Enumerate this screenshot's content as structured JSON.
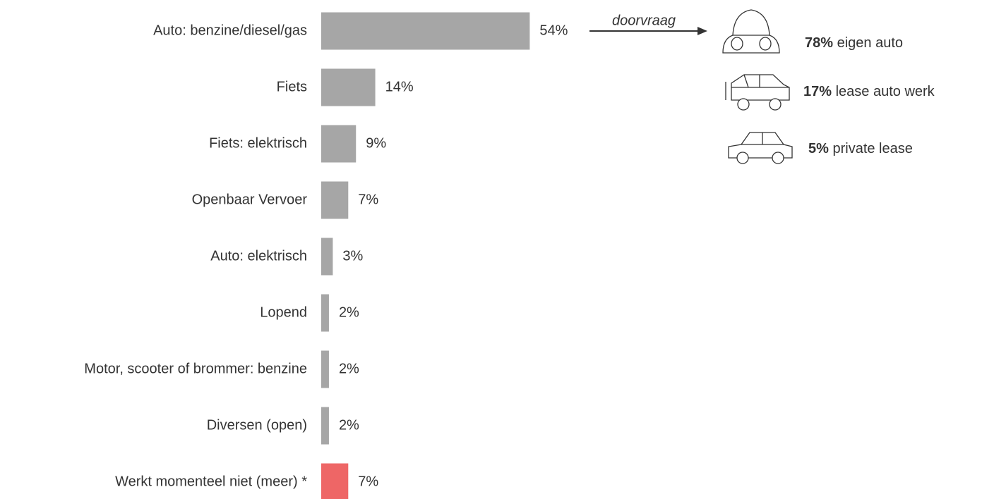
{
  "chart_data": {
    "type": "bar",
    "orientation": "horizontal",
    "categories": [
      "Auto: benzine/diesel/gas",
      "Fiets",
      "Fiets: elektrisch",
      "Openbaar Vervoer",
      "Auto: elektrisch",
      "Lopend",
      "Motor, scooter of brommer: benzine",
      "Diversen (open)",
      "Werkt momenteel niet (meer) *"
    ],
    "values": [
      54,
      14,
      9,
      7,
      3,
      2,
      2,
      2,
      7
    ],
    "value_labels": [
      "54%",
      "14%",
      "9%",
      "7%",
      "3%",
      "2%",
      "2%",
      "2%",
      "7%"
    ],
    "colors": [
      "#a6a6a6",
      "#a6a6a6",
      "#a6a6a6",
      "#a6a6a6",
      "#a6a6a6",
      "#a6a6a6",
      "#a6a6a6",
      "#a6a6a6",
      "#ee6666"
    ],
    "annotation": {
      "arrow_label": "doorvraag",
      "items": [
        {
          "label": "78%",
          "text": " eigen auto"
        },
        {
          "label": "17%",
          "text": " lease auto werk"
        },
        {
          "label": "5%",
          "text": " private lease"
        }
      ]
    }
  }
}
